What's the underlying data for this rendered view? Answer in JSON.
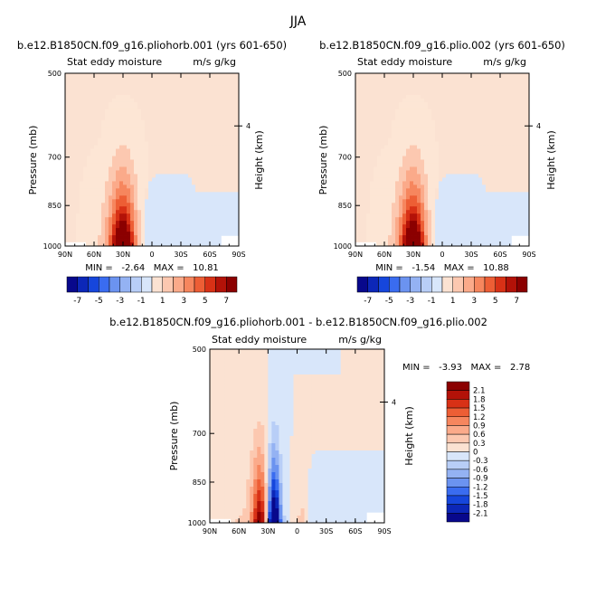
{
  "figure": {
    "title": "JJA"
  },
  "chart_data": [
    {
      "type": "heatmap",
      "title": "b.e12.B1850CN.f09_g16.pliohorb.001 (yrs 601-650)",
      "left_label": "Stat eddy moisture",
      "right_label": "m/s g/kg",
      "xlabel": "",
      "ylabel": "Pressure (mb)",
      "y2label": "Height (km)",
      "x_ticks": [
        "90N",
        "60N",
        "30N",
        "0",
        "30S",
        "60S",
        "90S"
      ],
      "y_ticks": [
        500,
        700,
        850,
        1000
      ],
      "y2_ticks": [
        4
      ],
      "stats_text": "MIN =   -2.64   MAX =   10.81",
      "min": -2.64,
      "max": 10.81,
      "peak": {
        "lat": 30,
        "p": 950
      },
      "colorbar_labels": [
        "-7",
        "-5",
        "-3",
        "-1",
        "1",
        "3",
        "5",
        "7"
      ]
    },
    {
      "type": "heatmap",
      "title": "b.e12.B1850CN.f09_g16.plio.002 (yrs 601-650)",
      "left_label": "Stat eddy moisture",
      "right_label": "m/s g/kg",
      "xlabel": "",
      "ylabel": "Pressure (mb)",
      "y2label": "Height (km)",
      "x_ticks": [
        "90N",
        "60N",
        "30N",
        "0",
        "30S",
        "60S",
        "90S"
      ],
      "y_ticks": [
        500,
        700,
        850,
        1000
      ],
      "y2_ticks": [
        4
      ],
      "stats_text": "MIN =   -1.54   MAX =   10.88",
      "min": -1.54,
      "max": 10.88,
      "peak": {
        "lat": 30,
        "p": 950
      },
      "colorbar_labels": [
        "-7",
        "-5",
        "-3",
        "-1",
        "1",
        "3",
        "5",
        "7"
      ]
    },
    {
      "type": "heatmap",
      "title": "b.e12.B1850CN.f09_g16.pliohorb.001 - b.e12.B1850CN.f09_g16.plio.002",
      "left_label": "Stat eddy moisture",
      "right_label": "m/s g/kg",
      "xlabel": "",
      "ylabel": "Pressure (mb)",
      "y2label": "Height (km)",
      "x_ticks": [
        "90N",
        "60N",
        "30N",
        "0",
        "30S",
        "60S",
        "90S"
      ],
      "y_ticks": [
        500,
        700,
        850,
        1000
      ],
      "y2_ticks": [
        4
      ],
      "stats_text": "MIN =   -3.93   MAX =   2.78",
      "min": -3.93,
      "max": 2.78,
      "colorbar_labels": [
        "2.1",
        "1.8",
        "1.5",
        "1.2",
        "0.9",
        "0.6",
        "0.3",
        "0",
        "-0.3",
        "-0.6",
        "-0.9",
        "-1.2",
        "-1.5",
        "-1.8",
        "-2.1"
      ]
    }
  ],
  "palette": {
    "colors": [
      "#08088c",
      "#0c27b8",
      "#1646dc",
      "#3a6cf0",
      "#6b93f0",
      "#94b2f3",
      "#b8cef7",
      "#d8e6fa",
      "#fbe2d2",
      "#fcc8b0",
      "#fbaa8a",
      "#f6865e",
      "#ed5e35",
      "#d83116",
      "#b31208",
      "#8b0000"
    ],
    "background": "#d4e6fb",
    "light_positive": "#fde6d5"
  }
}
